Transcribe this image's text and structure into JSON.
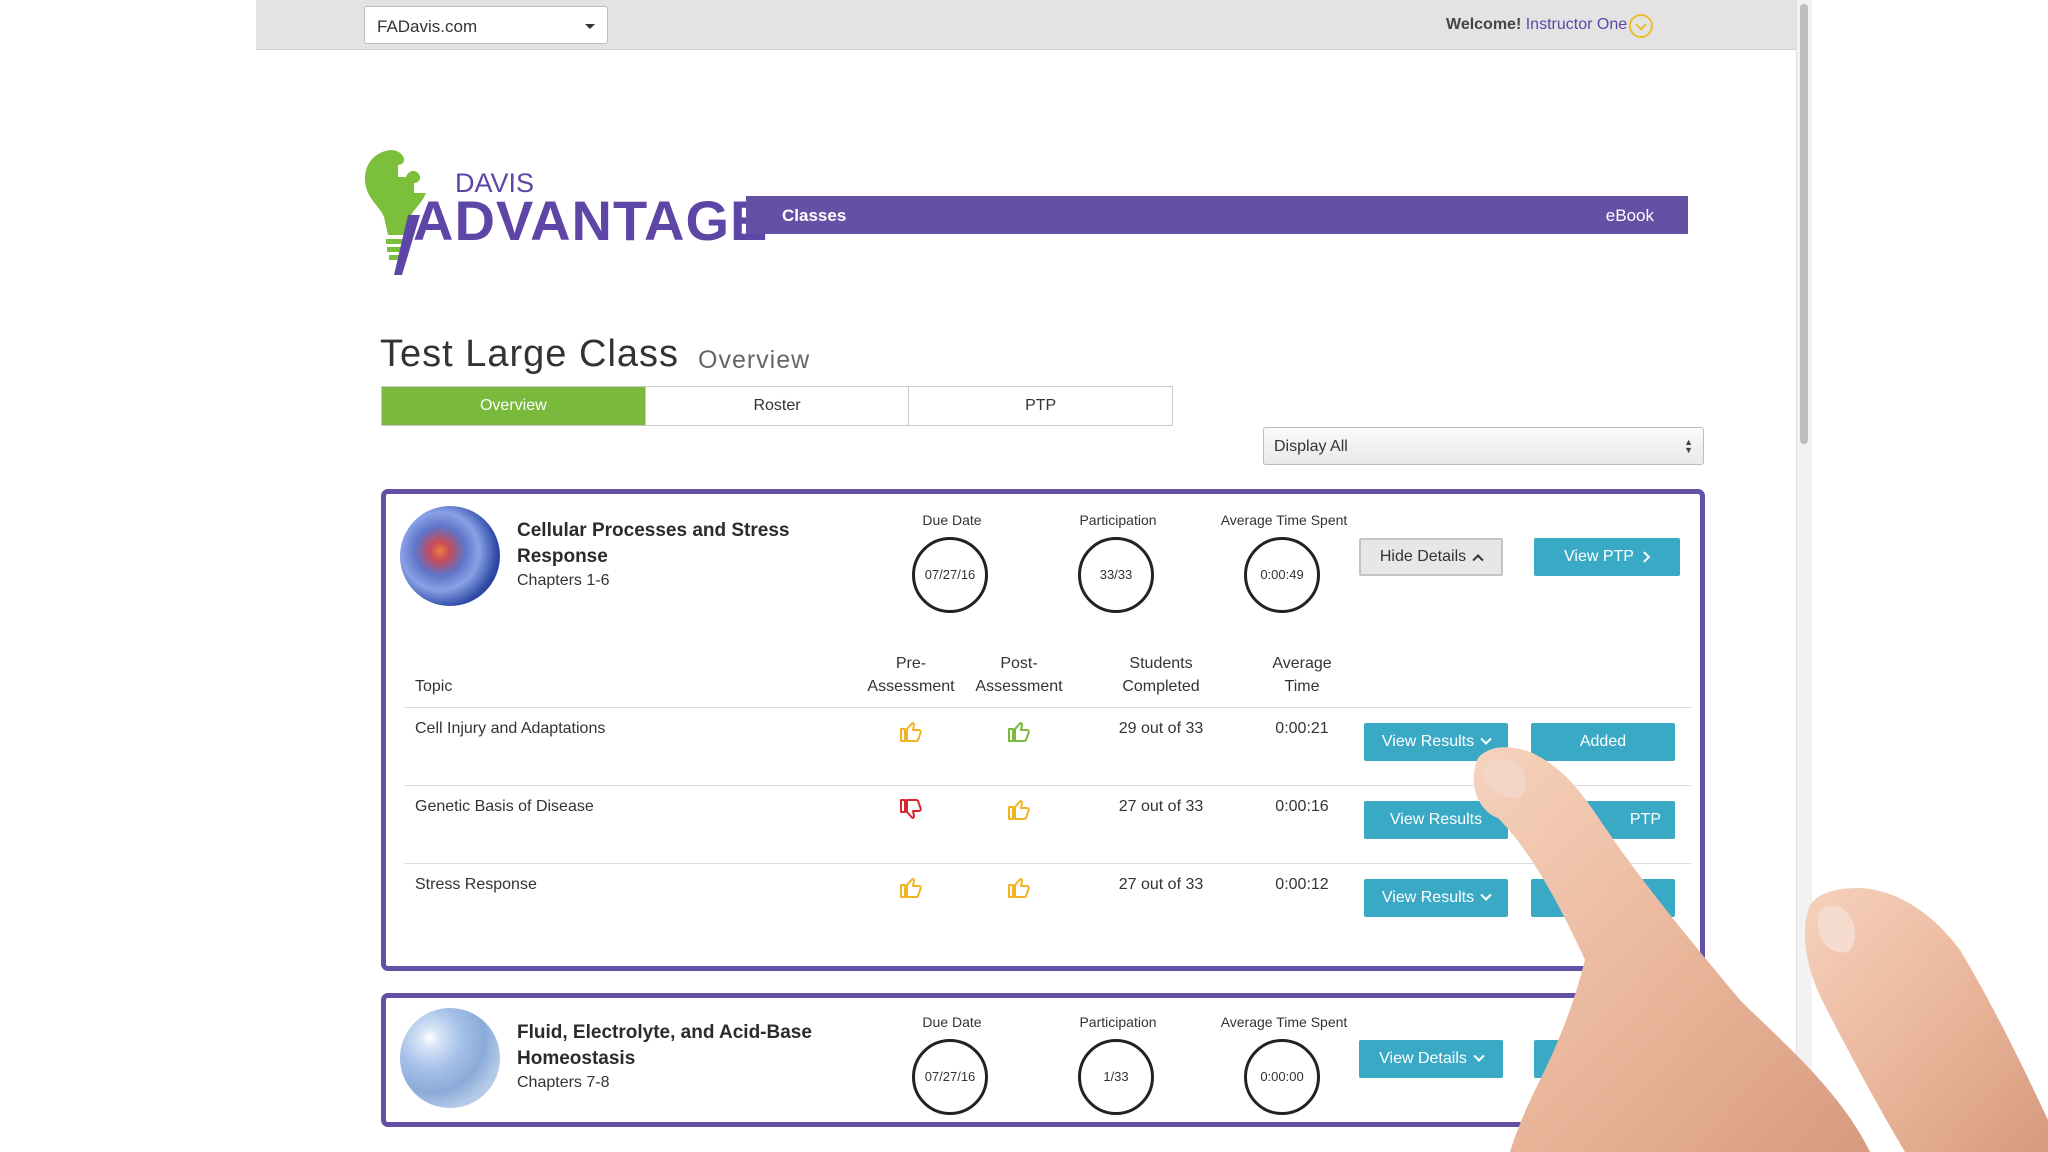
{
  "topbar": {
    "site_select_value": "FADavis.com",
    "welcome_label": "Welcome!",
    "user_name": "Instructor One"
  },
  "logo": {
    "top_text": "DAVIS",
    "main_text": "ADVANTAGE"
  },
  "nav": {
    "classes_label": "Classes",
    "ebook_label": "eBook"
  },
  "page": {
    "title": "Test Large Class",
    "subtitle": "Overview"
  },
  "tabs": [
    {
      "label": "Overview",
      "active": true
    },
    {
      "label": "Roster",
      "active": false
    },
    {
      "label": "PTP",
      "active": false
    }
  ],
  "display_filter": {
    "value": "Display All"
  },
  "units": [
    {
      "title": "Cellular Processes and Stress Response",
      "chapters": "Chapters 1-6",
      "due_date_label": "Due Date",
      "due_date": "07/27/16",
      "participation_label": "Participation",
      "participation": "33/33",
      "avg_time_label": "Average Time Spent",
      "avg_time": "0:00:49",
      "details_button": "Hide Details",
      "ptp_button": "View PTP",
      "table": {
        "headers": {
          "topic": "Topic",
          "pre_1": "Pre-",
          "pre_2": "Assessment",
          "post_1": "Post-",
          "post_2": "Assessment",
          "students_1": "Students",
          "students_2": "Completed",
          "avg_1": "Average",
          "avg_2": "Time"
        },
        "rows": [
          {
            "topic": "Cell Injury and Adaptations",
            "pre": "thumbs-up",
            "post": "thumbs-up",
            "completed": "29 out of 33",
            "avg_time": "0:00:21",
            "results_button": "View Results",
            "action_button": "Added"
          },
          {
            "topic": "Genetic Basis of Disease",
            "pre": "thumbs-down",
            "post": "thumbs-up",
            "completed": "27 out of 33",
            "avg_time": "0:00:16",
            "results_button": "View Results",
            "action_button": "PTP"
          },
          {
            "topic": "Stress Response",
            "pre": "thumbs-up",
            "post": "thumbs-up",
            "completed": "27 out of 33",
            "avg_time": "0:00:12",
            "results_button": "View Results",
            "action_button": ""
          }
        ]
      }
    },
    {
      "title": "Fluid, Electrolyte, and Acid-Base Homeostasis",
      "chapters": "Chapters 7-8",
      "due_date_label": "Due Date",
      "due_date": "07/27/16",
      "participation_label": "Participation",
      "participation": "1/33",
      "avg_time_label": "Average Time Spent",
      "avg_time": "0:00:00",
      "details_button": "View Details"
    }
  ],
  "colors": {
    "brand_purple": "#6450a4",
    "tab_active_green": "#79b93b",
    "button_teal": "#3aa9c5",
    "thumb_yellow": "#f0b323",
    "thumb_green": "#79b93b",
    "thumb_red": "#d9262c"
  }
}
